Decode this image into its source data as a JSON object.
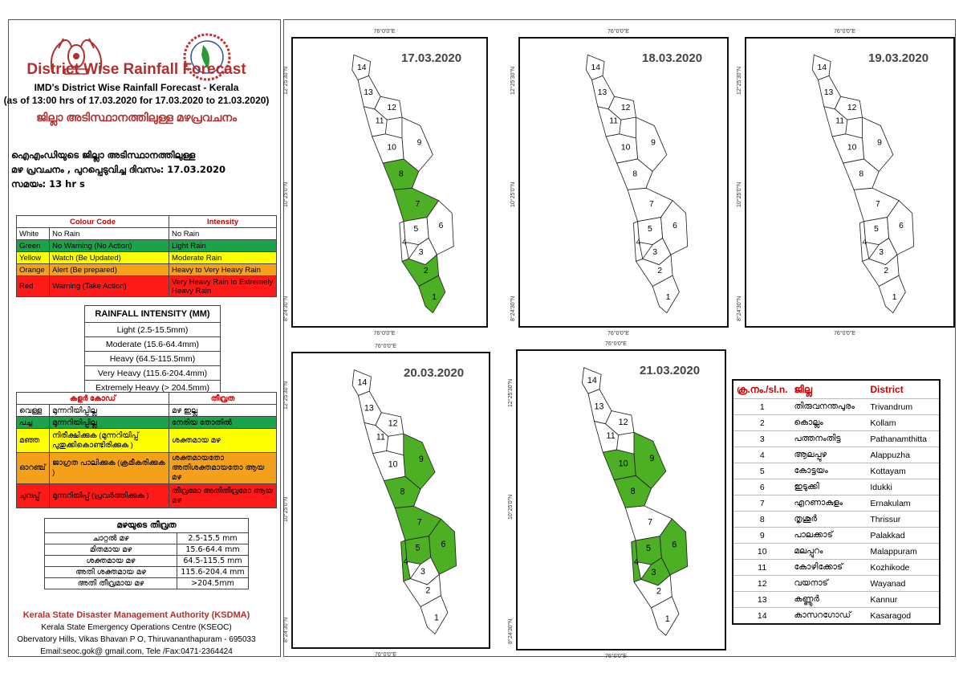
{
  "header": {
    "main_title": "District Wise Rainfall Forecast",
    "sub_title": "IMD's District Wise Rainfall Forecast - Kerala",
    "sub_date": "(as of 13:00 hrs of 17.03.2020  for 17.03.2020  to 21.03.2020)",
    "mal_title": "ജില്ലാ അടിസ്ഥാനത്തിലുള്ള മഴപ്രവചനം",
    "mal_line1": "ഐഎംഡിയുടെ ജില്ലാ     അടിസ്ഥാനത്തിലുള്ള",
    "mal_line2": "മഴ പ്രവചനം , പുറപ്പെടുവിച്ച     ദിവസം: 17.03.2020",
    "mal_line3": "സമയം:  13  hr s"
  },
  "colors": {
    "white": "#ffffff",
    "green": "#1aa34a",
    "yellow": "#ffff00",
    "orange": "#f5a01a",
    "red": "#ff1a1a",
    "map_green": "#4caf24",
    "title_red": "#b03030"
  },
  "colour_code": {
    "headers": [
      "Colour Code",
      "Intensity"
    ],
    "rows": [
      {
        "colour": "White",
        "meaning": "No Rain",
        "intensity": "No Rain",
        "bg": "#ffffff"
      },
      {
        "colour": "Green",
        "meaning": "No Warning (No Action)",
        "intensity": "Light Rain",
        "bg": "#1aa34a"
      },
      {
        "colour": "Yellow",
        "meaning": "Watch (Be Updated)",
        "intensity": "Moderate Rain",
        "bg": "#ffff00"
      },
      {
        "colour": "Orange",
        "meaning": "Alert (Be prepared)",
        "intensity": "Heavy to Very Heavy Rain",
        "bg": "#f5a01a"
      },
      {
        "colour": "Red",
        "meaning": "Warning (Take Action)",
        "intensity": "Very Heavy Rain to Extremely Heavy Rain",
        "bg": "#ff1a1a"
      }
    ]
  },
  "rainfall_intensity": {
    "title": "RAINFALL INTENSITY (MM)",
    "rows": [
      "Light (2.5-15.5mm)",
      "Moderate (15.6-64.4mm)",
      "Heavy (64.5-115.5mm)",
      "Very Heavy (115.6-204.4mm)",
      "Extremely Heavy (> 204.5mm)"
    ]
  },
  "mal_colour_code": {
    "headers": [
      "കളർ കോഡ്",
      "തീവ്രത"
    ],
    "rows": [
      {
        "colour": "വെള്ള",
        "meaning": "മുന്നറിയിപ്പില്ല",
        "intensity": "മഴ ഇല്ല",
        "bg": "#ffffff"
      },
      {
        "colour": "പച്ച",
        "meaning": "മുന്നറിയിപ്പില്ല",
        "intensity": "നേരിയ തോതിൽ",
        "bg": "#1aa34a"
      },
      {
        "colour": "മഞ്ഞ",
        "meaning": "നിരീക്ഷിക്കുക (മുന്നറിയിപ്പ് പുതുക്കികൊണ്ടിരിക്കുക )",
        "intensity": "ശക്തമായ മഴ",
        "bg": "#ffff00"
      },
      {
        "colour": "ഓറഞ്ച്",
        "meaning": "ജാഗ്രത പാലിക്കുക (ക്രമീകരിക്കുക )",
        "intensity": "ശക്തമായതോ അതിശക്തമായതോ ആയ മഴ",
        "bg": "#f5a01a"
      },
      {
        "colour": "ചുവപ്പ്",
        "meaning": "മുന്നറിയിപ്പ് (പ്രവർത്തിക്കുക )",
        "intensity": "തീവ്രമോ അതിതീവ്രമോ ആയ മഴ",
        "bg": "#ff1a1a"
      }
    ]
  },
  "mal_intensity": {
    "title": "മഴയുടെ തീവ്രത",
    "rows": [
      {
        "name": "ചാറ്റൽ മഴ",
        "range": "2.5-15.5 mm"
      },
      {
        "name": "മിതമായ മഴ",
        "range": "15.6-64.4 mm"
      },
      {
        "name": "ശക്തമായ മഴ",
        "range": "64.5-115.5 mm"
      },
      {
        "name": "അതി ശക്തമായ മഴ",
        "range": "115.6-204.4 mm"
      },
      {
        "name": "അതി തീവ്രമായ മഴ",
        "range": ">204.5mm"
      }
    ]
  },
  "footer": {
    "org": "Kerala State Disaster Management Authority (KSDMA)",
    "line1": "Kerala State Emergency Operations Centre (KSEOC)",
    "line2": "Obervatory Hills, Vikas Bhavan P O, Thiruvananthapuram - 695033",
    "line3": "Email:seoc.gok@ gmail.com, Tele /Fax:0471-2364424"
  },
  "coords": {
    "lon": "76°0'0\"E",
    "lat_top": "12°25'30\"N",
    "lat_mid": "10°25'0\"N",
    "lat_bot": "8°24'30\"N"
  },
  "maps": [
    {
      "date": "17.03.2020",
      "green": [
        8,
        7,
        2,
        1
      ]
    },
    {
      "date": "18.03.2020",
      "green": []
    },
    {
      "date": "19.03.2020",
      "green": []
    },
    {
      "date": "20.03.2020",
      "green": [
        9,
        8,
        7,
        6,
        5,
        4
      ]
    },
    {
      "date": "21.03.2020",
      "green": [
        10,
        9,
        8,
        6,
        5,
        4,
        3
      ]
    }
  ],
  "districts": {
    "headers": [
      "ക്ര.നം./sl.n.",
      "ജില്ല",
      "District"
    ],
    "rows": [
      {
        "n": "1",
        "mal": "തിരുവനന്തപുരം",
        "en": "Trivandrum"
      },
      {
        "n": "2",
        "mal": "കൊല്ലം",
        "en": "Kollam"
      },
      {
        "n": "3",
        "mal": "പത്തനംതിട്ട",
        "en": "Pathanamthitta"
      },
      {
        "n": "4",
        "mal": "ആലപ്പുഴ",
        "en": "Alappuzha"
      },
      {
        "n": "5",
        "mal": "കോട്ടയം",
        "en": "Kottayam"
      },
      {
        "n": "6",
        "mal": "ഇടുക്കി",
        "en": "Idukki"
      },
      {
        "n": "7",
        "mal": "എറണാകുളം",
        "en": "Ernakulam"
      },
      {
        "n": "8",
        "mal": "തൃശൂർ",
        "en": "Thrissur"
      },
      {
        "n": "9",
        "mal": "പാലക്കാട്",
        "en": "Palakkad"
      },
      {
        "n": "10",
        "mal": "മലപ്പുറം",
        "en": "Malappuram"
      },
      {
        "n": "11",
        "mal": "കോഴിക്കോട്",
        "en": "Kozhikode"
      },
      {
        "n": "12",
        "mal": "വയനാട്",
        "en": "Wayanad"
      },
      {
        "n": "13",
        "mal": "കണ്ണൂർ",
        "en": "Kannur"
      },
      {
        "n": "14",
        "mal": "കാസറഗോഡ്",
        "en": "Kasaragod"
      }
    ]
  }
}
